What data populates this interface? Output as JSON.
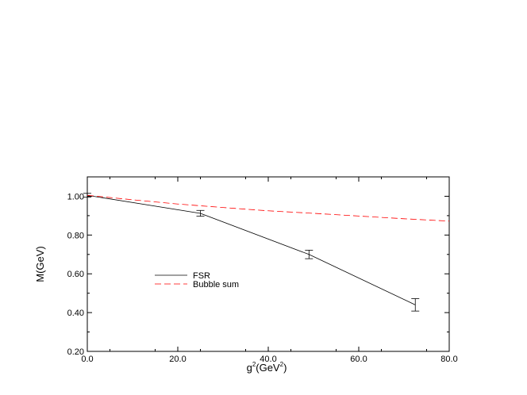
{
  "chart_data": {
    "type": "line",
    "xlabel": {
      "base": "g",
      "sup1": "2",
      "mid": "(GeV",
      "sup2": "2",
      "end": ")"
    },
    "ylabel": "M(GeV)",
    "xlim": [
      0,
      80
    ],
    "ylim": [
      0.2,
      1.1
    ],
    "xticks": [
      0,
      20,
      40,
      60,
      80
    ],
    "xtick_labels": [
      "0.0",
      "20.0",
      "40.0",
      "60.0",
      "80.0"
    ],
    "yticks": [
      0.2,
      0.4,
      0.6,
      0.8,
      1.0
    ],
    "ytick_labels": [
      "0.20",
      "0.40",
      "0.60",
      "0.80",
      "1.00"
    ],
    "grid": false,
    "legend_position": "center-left",
    "series": [
      {
        "name": "FSR",
        "style": "solid",
        "color": "#000000",
        "x": [
          0,
          25,
          49,
          72.5
        ],
        "y": [
          1.005,
          0.912,
          0.7,
          0.44
        ],
        "error_points": [
          {
            "x": 0,
            "y": 1.005,
            "err": 0.01
          },
          {
            "x": 25,
            "y": 0.912,
            "err": 0.015
          },
          {
            "x": 49,
            "y": 0.7,
            "err": 0.022
          },
          {
            "x": 72.5,
            "y": 0.44,
            "err": 0.032
          }
        ]
      },
      {
        "name": "Bubble sum",
        "style": "dashed",
        "color": "#ff0000",
        "x": [
          0,
          10,
          20,
          30,
          40,
          50,
          60,
          70,
          80
        ],
        "y": [
          1.005,
          0.982,
          0.96,
          0.942,
          0.925,
          0.912,
          0.898,
          0.884,
          0.872
        ]
      }
    ]
  }
}
